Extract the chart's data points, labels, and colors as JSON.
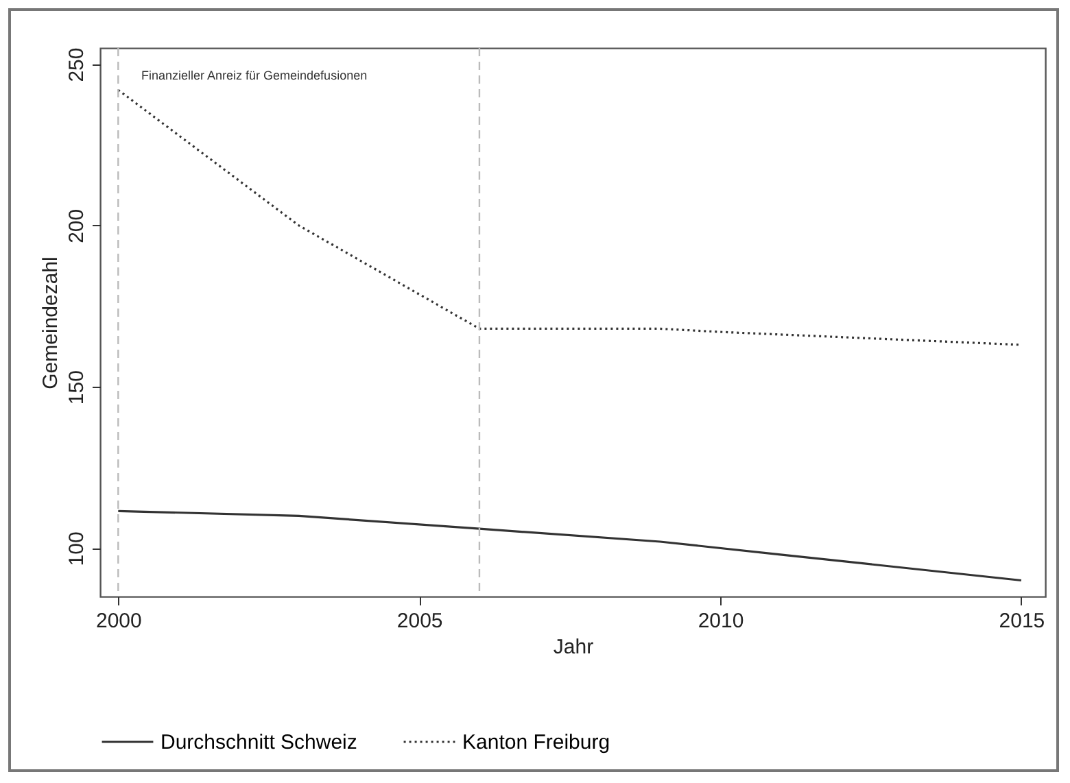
{
  "chart_data": {
    "type": "line",
    "xlabel": "Jahr",
    "ylabel": "Gemeindezahl",
    "x": [
      2000,
      2003,
      2006,
      2009,
      2011,
      2015
    ],
    "series": [
      {
        "name": "Durchschnitt Schweiz",
        "color": "#333333",
        "line_style": "solid",
        "values": [
          111.5,
          110,
          106,
          102,
          98,
          90
        ]
      },
      {
        "name": "Kanton Freiburg",
        "color": "#333333",
        "line_style": "dotted",
        "x": [
          2000,
          2003,
          2006,
          2009,
          2010,
          2015
        ],
        "values": [
          242,
          200,
          168,
          168,
          167,
          163
        ]
      }
    ],
    "xlim": [
      1999.7,
      2015.4
    ],
    "xticks": [
      2000,
      2005,
      2010,
      2015
    ],
    "ylim": [
      85,
      255
    ],
    "yticks": [
      100,
      150,
      200,
      250
    ],
    "ref_lines": [
      {
        "axis": "x",
        "value": 2000,
        "label": null,
        "color": "#bbbbbb",
        "line_style": "dashed"
      },
      {
        "axis": "x",
        "value": 2006,
        "label": null,
        "color": "#bbbbbb",
        "line_style": "dashed"
      }
    ],
    "annotations": [
      "Finanzieller Anreiz für Gemeindefusionen"
    ],
    "grid": false,
    "legend": "bottom",
    "marker": "none"
  }
}
